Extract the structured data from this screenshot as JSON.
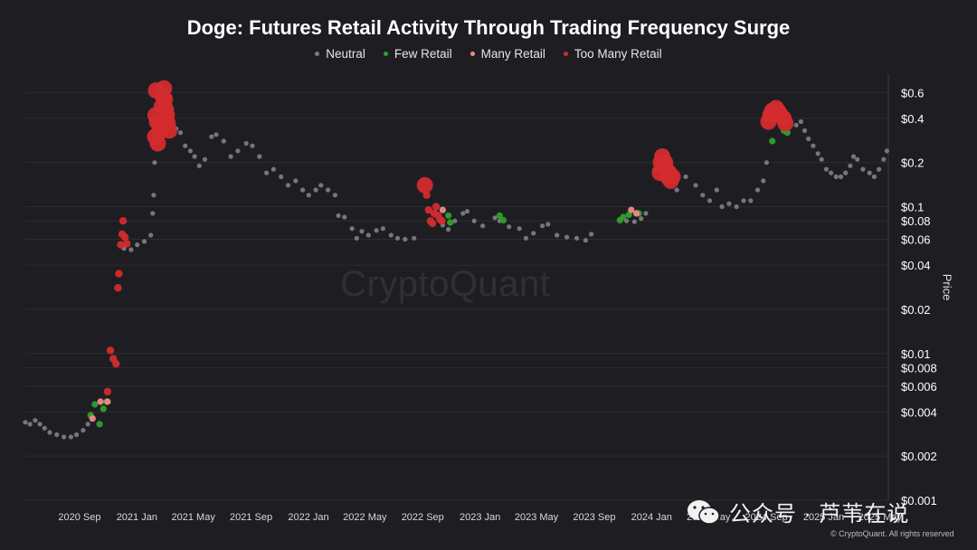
{
  "title": "Doge: Futures Retail Activity Through Trading Frequency Surge",
  "watermark": "CryptoQuant",
  "footer": {
    "wechat_text": "公众号 · 芦苇在说",
    "copyright": "© CryptoQuant. All rights reserved"
  },
  "colors": {
    "background": "#1e1e22",
    "grid": "#2c2c31",
    "neutral": "#7c7b85",
    "few_retail": "#2ea12e",
    "many_retail": "#ef8b86",
    "too_many_retail": "#d42b2e"
  },
  "chart_data": {
    "type": "scatter",
    "title": "Doge: Futures Retail Activity Through Trading Frequency Surge",
    "ylabel": "Price",
    "y_scale": "log",
    "ylim": [
      0.001,
      0.8
    ],
    "xlim": [
      "2020-07-15",
      "2025-07-25"
    ],
    "legend_position": "top-center",
    "legend": [
      "Neutral",
      "Few Retail",
      "Many Retail",
      "Too Many Retail"
    ],
    "x_ticks": [
      {
        "date": "2020-09-01",
        "label": "2020 Sep"
      },
      {
        "date": "2021-01-01",
        "label": "2021 Jan"
      },
      {
        "date": "2021-05-01",
        "label": "2021 May"
      },
      {
        "date": "2021-09-01",
        "label": "2021 Sep"
      },
      {
        "date": "2022-01-01",
        "label": "2022 Jan"
      },
      {
        "date": "2022-05-01",
        "label": "2022 May"
      },
      {
        "date": "2022-09-01",
        "label": "2022 Sep"
      },
      {
        "date": "2023-01-01",
        "label": "2023 Jan"
      },
      {
        "date": "2023-05-01",
        "label": "2023 May"
      },
      {
        "date": "2023-09-01",
        "label": "2023 Sep"
      },
      {
        "date": "2024-01-01",
        "label": "2024 Jan"
      },
      {
        "date": "2024-05-01",
        "label": "2024 May"
      },
      {
        "date": "2024-09-01",
        "label": "2024 Sep"
      },
      {
        "date": "2025-01-01",
        "label": "2025 Jan"
      },
      {
        "date": "2025-05-01",
        "label": "2025 May"
      }
    ],
    "y_ticks": [
      {
        "value": 0.6,
        "label": "$0.6"
      },
      {
        "value": 0.4,
        "label": "$0.4"
      },
      {
        "value": 0.2,
        "label": "$0.2"
      },
      {
        "value": 0.1,
        "label": "$0.1"
      },
      {
        "value": 0.08,
        "label": "$0.08"
      },
      {
        "value": 0.06,
        "label": "$0.06"
      },
      {
        "value": 0.04,
        "label": "$0.04"
      },
      {
        "value": 0.02,
        "label": "$0.02"
      },
      {
        "value": 0.01,
        "label": "$0.01"
      },
      {
        "value": 0.008,
        "label": "$0.008"
      },
      {
        "value": 0.006,
        "label": "$0.006"
      },
      {
        "value": 0.004,
        "label": "$0.004"
      },
      {
        "value": 0.002,
        "label": "$0.002"
      },
      {
        "value": 0.001,
        "label": "$0.001"
      }
    ],
    "series": [
      {
        "name": "Neutral",
        "color": "#7c7b85",
        "points": [
          [
            "2020-07-15",
            0.0034
          ],
          [
            "2020-07-25",
            0.0033
          ],
          [
            "2020-08-05",
            0.0035
          ],
          [
            "2020-08-15",
            0.0033
          ],
          [
            "2020-08-25",
            0.0031
          ],
          [
            "2020-09-05",
            0.0029
          ],
          [
            "2020-09-20",
            0.0028
          ],
          [
            "2020-10-05",
            0.0027
          ],
          [
            "2020-10-20",
            0.0027
          ],
          [
            "2020-11-01",
            0.0028
          ],
          [
            "2020-11-15",
            0.003
          ],
          [
            "2020-11-25",
            0.0033
          ],
          [
            "2021-02-10",
            0.052
          ],
          [
            "2021-02-25",
            0.051
          ],
          [
            "2021-03-10",
            0.055
          ],
          [
            "2021-03-25",
            0.058
          ],
          [
            "2021-04-08",
            0.064
          ],
          [
            "2021-04-12",
            0.09
          ],
          [
            "2021-04-14",
            0.12
          ],
          [
            "2021-04-16",
            0.2
          ],
          [
            "2021-05-20",
            0.38
          ],
          [
            "2021-06-01",
            0.34
          ],
          [
            "2021-06-10",
            0.32
          ],
          [
            "2021-06-20",
            0.26
          ],
          [
            "2021-07-01",
            0.24
          ],
          [
            "2021-07-10",
            0.22
          ],
          [
            "2021-07-20",
            0.19
          ],
          [
            "2021-08-01",
            0.21
          ],
          [
            "2021-08-15",
            0.3
          ],
          [
            "2021-08-25",
            0.31
          ],
          [
            "2021-09-10",
            0.28
          ],
          [
            "2021-09-25",
            0.22
          ],
          [
            "2021-10-10",
            0.24
          ],
          [
            "2021-10-28",
            0.27
          ],
          [
            "2021-11-10",
            0.26
          ],
          [
            "2021-11-25",
            0.22
          ],
          [
            "2021-12-10",
            0.17
          ],
          [
            "2021-12-25",
            0.18
          ],
          [
            "2022-01-10",
            0.16
          ],
          [
            "2022-01-25",
            0.14
          ],
          [
            "2022-02-10",
            0.15
          ],
          [
            "2022-02-25",
            0.13
          ],
          [
            "2022-03-10",
            0.12
          ],
          [
            "2022-03-25",
            0.13
          ],
          [
            "2022-04-05",
            0.14
          ],
          [
            "2022-04-20",
            0.13
          ],
          [
            "2022-05-05",
            0.12
          ],
          [
            "2022-05-12",
            0.087
          ],
          [
            "2022-05-25",
            0.085
          ],
          [
            "2022-06-10",
            0.071
          ],
          [
            "2022-06-20",
            0.061
          ],
          [
            "2022-07-01",
            0.068
          ],
          [
            "2022-07-15",
            0.064
          ],
          [
            "2022-08-01",
            0.069
          ],
          [
            "2022-08-15",
            0.071
          ],
          [
            "2022-09-01",
            0.064
          ],
          [
            "2022-09-15",
            0.061
          ],
          [
            "2022-10-01",
            0.06
          ],
          [
            "2022-10-20",
            0.061
          ],
          [
            "2022-12-20",
            0.075
          ],
          [
            "2023-01-01",
            0.07
          ],
          [
            "2023-01-15",
            0.08
          ],
          [
            "2023-02-01",
            0.09
          ],
          [
            "2023-02-10",
            0.093
          ],
          [
            "2023-02-25",
            0.08
          ],
          [
            "2023-03-15",
            0.074
          ],
          [
            "2023-04-10",
            0.084
          ],
          [
            "2023-04-20",
            0.08
          ],
          [
            "2023-05-10",
            0.073
          ],
          [
            "2023-06-01",
            0.071
          ],
          [
            "2023-06-15",
            0.061
          ],
          [
            "2023-07-01",
            0.066
          ],
          [
            "2023-07-20",
            0.074
          ],
          [
            "2023-08-01",
            0.076
          ],
          [
            "2023-08-20",
            0.064
          ],
          [
            "2023-09-10",
            0.062
          ],
          [
            "2023-10-01",
            0.061
          ],
          [
            "2023-10-20",
            0.059
          ],
          [
            "2023-11-01",
            0.065
          ],
          [
            "2024-01-15",
            0.08
          ],
          [
            "2024-02-01",
            0.079
          ],
          [
            "2024-02-15",
            0.083
          ],
          [
            "2024-02-25",
            0.09
          ],
          [
            "2024-03-15",
            0.18
          ],
          [
            "2024-04-20",
            0.16
          ],
          [
            "2024-05-01",
            0.13
          ],
          [
            "2024-05-20",
            0.16
          ],
          [
            "2024-06-10",
            0.14
          ],
          [
            "2024-06-25",
            0.12
          ],
          [
            "2024-07-10",
            0.11
          ],
          [
            "2024-07-25",
            0.13
          ],
          [
            "2024-08-05",
            0.1
          ],
          [
            "2024-08-20",
            0.105
          ],
          [
            "2024-09-05",
            0.1
          ],
          [
            "2024-09-20",
            0.11
          ],
          [
            "2024-10-05",
            0.11
          ],
          [
            "2024-10-20",
            0.13
          ],
          [
            "2024-11-01",
            0.15
          ],
          [
            "2024-11-08",
            0.2
          ],
          [
            "2025-01-10",
            0.36
          ],
          [
            "2025-01-20",
            0.38
          ],
          [
            "2025-01-28",
            0.33
          ],
          [
            "2025-02-05",
            0.29
          ],
          [
            "2025-02-15",
            0.26
          ],
          [
            "2025-02-25",
            0.23
          ],
          [
            "2025-03-05",
            0.21
          ],
          [
            "2025-03-15",
            0.18
          ],
          [
            "2025-03-25",
            0.17
          ],
          [
            "2025-04-05",
            0.16
          ],
          [
            "2025-04-15",
            0.16
          ],
          [
            "2025-04-25",
            0.17
          ],
          [
            "2025-05-05",
            0.19
          ],
          [
            "2025-05-12",
            0.22
          ],
          [
            "2025-05-20",
            0.21
          ],
          [
            "2025-06-01",
            0.18
          ],
          [
            "2025-06-15",
            0.17
          ],
          [
            "2025-06-25",
            0.16
          ],
          [
            "2025-07-05",
            0.18
          ],
          [
            "2025-07-15",
            0.21
          ],
          [
            "2025-07-22",
            0.24
          ]
        ]
      },
      {
        "name": "Few Retail",
        "color": "#2ea12e",
        "points": [
          [
            "2020-12-01",
            0.0038
          ],
          [
            "2020-12-10",
            0.0045
          ],
          [
            "2020-12-20",
            0.0033
          ],
          [
            "2020-12-28",
            0.0042
          ],
          [
            "2021-01-04",
            0.0047
          ],
          [
            "2023-01-01",
            0.087
          ],
          [
            "2023-01-05",
            0.078
          ],
          [
            "2023-04-20",
            0.087
          ],
          [
            "2023-04-28",
            0.081
          ],
          [
            "2024-01-01",
            0.081
          ],
          [
            "2024-01-08",
            0.085
          ],
          [
            "2024-01-20",
            0.088
          ],
          [
            "2024-02-10",
            0.09
          ],
          [
            "2024-11-20",
            0.28
          ],
          [
            "2024-12-15",
            0.33
          ],
          [
            "2024-12-22",
            0.32
          ]
        ]
      },
      {
        "name": "Many Retail",
        "color": "#ef8b86",
        "points": [
          [
            "2020-12-05",
            0.0036
          ],
          [
            "2020-12-22",
            0.0047
          ],
          [
            "2021-01-06",
            0.0047
          ],
          [
            "2022-12-20",
            0.095
          ],
          [
            "2024-01-25",
            0.095
          ],
          [
            "2024-02-05",
            0.09
          ],
          [
            "2024-04-20",
            0.16
          ],
          [
            "2024-04-28",
            0.155
          ]
        ]
      },
      {
        "name": "Too Many Retail",
        "color": "#d42b2e",
        "points": [
          [
            "2021-01-06",
            0.0055
          ],
          [
            "2021-01-12",
            0.0105
          ],
          [
            "2021-01-18",
            0.0092
          ],
          [
            "2021-01-24",
            0.0085
          ],
          [
            "2021-01-28",
            0.028
          ],
          [
            "2021-01-30",
            0.035
          ],
          [
            "2021-02-03",
            0.055
          ],
          [
            "2021-02-06",
            0.065
          ],
          [
            "2021-02-08",
            0.08
          ],
          [
            "2021-02-12",
            0.062
          ],
          [
            "2021-02-16",
            0.056
          ],
          [
            "2021-04-17",
            0.3
          ],
          [
            "2021-04-18",
            0.42
          ],
          [
            "2021-04-19",
            0.62
          ],
          [
            "2021-04-21",
            0.38
          ],
          [
            "2021-04-23",
            0.27
          ],
          [
            "2021-04-25",
            0.32
          ],
          [
            "2021-04-28",
            0.38
          ],
          [
            "2021-05-01",
            0.48
          ],
          [
            "2021-05-04",
            0.56
          ],
          [
            "2021-05-06",
            0.64
          ],
          [
            "2021-05-08",
            0.54
          ],
          [
            "2021-05-10",
            0.46
          ],
          [
            "2021-05-12",
            0.42
          ],
          [
            "2021-05-14",
            0.37
          ],
          [
            "2021-05-17",
            0.33
          ],
          [
            "2022-11-12",
            0.14
          ],
          [
            "2022-11-16",
            0.12
          ],
          [
            "2022-11-20",
            0.095
          ],
          [
            "2022-11-24",
            0.08
          ],
          [
            "2022-11-28",
            0.077
          ],
          [
            "2022-12-02",
            0.09
          ],
          [
            "2022-12-06",
            0.1
          ],
          [
            "2022-12-10",
            0.087
          ],
          [
            "2022-12-14",
            0.082
          ],
          [
            "2022-12-18",
            0.08
          ],
          [
            "2024-03-26",
            0.17
          ],
          [
            "2024-03-28",
            0.2
          ],
          [
            "2024-03-31",
            0.22
          ],
          [
            "2024-04-03",
            0.19
          ],
          [
            "2024-04-06",
            0.2
          ],
          [
            "2024-04-09",
            0.18
          ],
          [
            "2024-04-12",
            0.16
          ],
          [
            "2024-04-15",
            0.17
          ],
          [
            "2024-04-18",
            0.15
          ],
          [
            "2024-04-22",
            0.16
          ],
          [
            "2024-11-12",
            0.38
          ],
          [
            "2024-11-16",
            0.42
          ],
          [
            "2024-11-20",
            0.45
          ],
          [
            "2024-11-24",
            0.43
          ],
          [
            "2024-11-28",
            0.47
          ],
          [
            "2024-12-02",
            0.45
          ],
          [
            "2024-12-06",
            0.43
          ],
          [
            "2024-12-10",
            0.41
          ],
          [
            "2024-12-14",
            0.4
          ],
          [
            "2024-12-18",
            0.37
          ]
        ]
      }
    ]
  }
}
